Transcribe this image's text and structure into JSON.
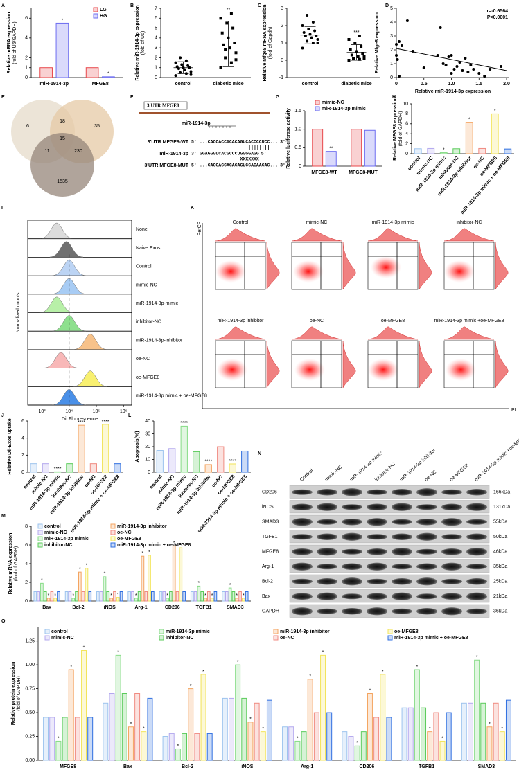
{
  "chart_data": [
    {
      "panel": "A",
      "type": "bar",
      "y_label": "Relative mRNA expression",
      "y_sublabel": "(fold of U6/GAPDH)",
      "categories": [
        "miR-1914-3p",
        "MFGE8"
      ],
      "series": [
        {
          "name": "LG",
          "color": "#e8474b",
          "values": [
            1,
            1
          ]
        },
        {
          "name": "HG",
          "color": "#6c6cf0",
          "values": [
            5.5,
            0.08
          ],
          "significance": [
            "*",
            "*"
          ]
        }
      ],
      "ylim": [
        0,
        7
      ],
      "yticks": [
        0,
        1,
        2,
        4,
        6
      ]
    },
    {
      "panel": "B",
      "type": "dot",
      "y_label": "Relative miR-1914-3p expression",
      "y_sublabel": "(fold of U6)",
      "ylim": [
        0,
        7
      ],
      "yticks": [
        0,
        1,
        2,
        3,
        4,
        5,
        6,
        7
      ],
      "groups": [
        {
          "name": "control",
          "values": [
            0.2,
            0.4,
            0.5,
            0.6,
            0.8,
            0.9,
            1.0,
            1.0,
            1.1,
            1.2,
            1.3,
            1.5,
            1.7,
            2.0,
            0.3
          ],
          "mean": 1.0,
          "sd": 0.6
        },
        {
          "name": "diabetic mice",
          "values": [
            1.0,
            1.5,
            2.0,
            2.5,
            3.0,
            3.3,
            3.5,
            4.0,
            4.5,
            5.0,
            5.5,
            6.0,
            6.5,
            2.8,
            1.8
          ],
          "mean": 3.4,
          "sd": 2.3,
          "significance": "**"
        }
      ]
    },
    {
      "panel": "C",
      "type": "dot",
      "y_label": "Relative Mfge8 mRNA expression",
      "y_sublabel": "(fold of Gapdh)",
      "ylim": [
        -1,
        3
      ],
      "yticks": [
        -1,
        0,
        1,
        2,
        3
      ],
      "groups": [
        {
          "name": "control",
          "values": [
            0.7,
            1.0,
            1.1,
            1.2,
            1.3,
            1.4,
            1.4,
            1.5,
            1.6,
            1.7,
            1.8,
            2.0,
            2.2,
            2.6,
            1.0
          ],
          "mean": 1.45,
          "sd": 0.5
        },
        {
          "name": "diabetic mice",
          "values": [
            0,
            0.05,
            0.1,
            0.1,
            0.2,
            0.3,
            0.4,
            0.5,
            0.6,
            0.8,
            1.0,
            1.2,
            1.4,
            0.1,
            0.2
          ],
          "mean": 0.45,
          "sd": 0.45,
          "significance": "***"
        }
      ]
    },
    {
      "panel": "D",
      "type": "scatter",
      "x_label": "Relative miR-1914-3p expression",
      "y_label": "Relative Mfge8 expression",
      "xlim": [
        0,
        2.05
      ],
      "ylim": [
        0,
        5
      ],
      "xticks": [
        0,
        0.5,
        {
          "value": 1,
          "label": "1.0"
        },
        1.5,
        {
          "value": 2,
          "label": "2.0"
        }
      ],
      "yticks": [
        0,
        1,
        2,
        3,
        4,
        5
      ],
      "x": [
        0,
        0,
        0.02,
        0.05,
        0.05,
        0.1,
        0.2,
        0.3,
        0.5,
        0.75,
        0.8,
        0.9,
        0.95,
        1.0,
        1.05,
        1.1,
        1.15,
        1.2,
        1.3,
        1.35,
        1.4,
        1.5,
        1.6,
        1.7,
        1.9,
        1.0,
        0.85,
        1.25
      ],
      "y": [
        2.4,
        1.6,
        1.3,
        2.6,
        0.1,
        2.3,
        4.1,
        1.9,
        0.7,
        1.6,
        3.6,
        0.9,
        1.5,
        1.6,
        0.6,
        0.8,
        1.1,
        0.5,
        0.4,
        0.9,
        0.6,
        0.3,
        0.1,
        0.6,
        0.8,
        0.3,
        1.0,
        1.4
      ],
      "fit_x": [
        0,
        2
      ],
      "fit_y": [
        2.1,
        0.5
      ],
      "annotations": [
        "r=-0.6564",
        "P<0.0001"
      ]
    },
    {
      "panel": "E",
      "type": "venn",
      "numbers": [
        6,
        18,
        35,
        15,
        11,
        230,
        1535
      ]
    },
    {
      "panel": "F",
      "type": "sequence",
      "gene_label": "3'UTR MFGE8",
      "mirna_label": "miR-1914-3p",
      "rows": [
        {
          "label": "3'UTR MFGE8-WT",
          "start": "5'",
          "seq": "...CACCACCACACAGUC",
          "site": "ACCCCUCC",
          "tail": "...",
          "end": "3'"
        },
        {
          "label": "miR-1914-3p",
          "start": "3'",
          "seq": "GGAGGGUCACGCCCU",
          "site": "GGGGAGG",
          "end": "5'"
        },
        {
          "label": "3'UTR MFGE8-MUT",
          "start": "5'",
          "seq": "...CACCACCACACAGUC",
          "site": "CAGAACAC",
          "tail": "...",
          "end": "3'"
        }
      ],
      "mismatch": "XXXXXXX"
    },
    {
      "panel": "G",
      "type": "bar",
      "y_label": "Relative luciferase activity",
      "categories": [
        "MFGE8-WT",
        "MFGE8-MUT"
      ],
      "series": [
        {
          "name": "mimic-NC",
          "color": "#e8474b",
          "values": [
            1,
            1
          ]
        },
        {
          "name": "miR-1914-3p mimic",
          "color": "#6c6cf0",
          "values": [
            0.4,
            0.97
          ],
          "significance": [
            "**",
            null
          ]
        }
      ],
      "ylim": [
        0,
        1.5
      ],
      "yticks": [
        0,
        0.5,
        {
          "value": 1,
          "label": "1.0"
        },
        1.5
      ]
    },
    {
      "panel": "H",
      "type": "bar",
      "y_label": "Relative MFGE8 expression",
      "y_sublabel": "(fold of GAPDH)",
      "categories": [
        "control",
        "mimic-NC",
        "miR-1914-3p mimic",
        "inhibitor-NC",
        "miR-1914-3p inhibitor",
        "oe-NC",
        "oe-MFGE8",
        "miR-1914-3p mimic + oe-MFGE8"
      ],
      "values": [
        1,
        1.05,
        0.2,
        1,
        6.3,
        1.05,
        8,
        0.95
      ],
      "colors": [
        "#9cc3ee",
        "#b3a8ee",
        "#86dc86",
        "#5acb5a",
        "#f4a460",
        "#f08a80",
        "#f2e45a",
        "#2f6fe0"
      ],
      "significance": [
        null,
        null,
        "*",
        null,
        "*",
        null,
        "*",
        null
      ],
      "ylim": [
        0,
        10
      ],
      "yticks": [
        0,
        2,
        4,
        6,
        8,
        10
      ]
    },
    {
      "panel": "I",
      "type": "histogram_stack",
      "x_label": "Dil Fluorescence",
      "y_label": "Normalized counts",
      "log_x": true,
      "xlim": [
        300,
        2000000
      ],
      "xticks": [
        {
          "value": 1000,
          "label": "10³"
        },
        {
          "value": 10000,
          "label": "10⁴"
        },
        {
          "value": 100000,
          "label": "10⁵"
        },
        {
          "value": 1000000,
          "label": "10⁶"
        }
      ],
      "reference_line": 10000,
      "rows": [
        {
          "label": "None",
          "color": "#dcdcdc",
          "peak": 3500
        },
        {
          "label": "Naive Exos",
          "color": "#707070",
          "peak": 8000
        },
        {
          "label": "Control",
          "color": "#bcd4f4",
          "peak": 10000
        },
        {
          "label": "mimic-NC",
          "color": "#a8ccf4",
          "peak": 10000
        },
        {
          "label": "miR-1914-3p-mimic",
          "color": "#b8f0a8",
          "peak": 3500
        },
        {
          "label": "inhibitor-NC",
          "color": "#8ee08e",
          "peak": 10000
        },
        {
          "label": "miR-1914-3p-inhibitor",
          "color": "#f7c28a",
          "peak": 60000
        },
        {
          "label": "oe-NC",
          "color": "#f8b8b8",
          "peak": 5000
        },
        {
          "label": "oe-MFGE8",
          "color": "#f8f070",
          "peak": 60000
        },
        {
          "label": "miR-1914-3p mimic + oe-MFGE8",
          "color": "#4a90e8",
          "peak": 10000
        }
      ]
    },
    {
      "panel": "K",
      "type": "flow_grid",
      "x_label": "PI",
      "y_label": "PerCP",
      "plots": [
        "Control",
        "mimic-NC",
        "miR-1914-3p mimic",
        "inhibitor-NC",
        "miR-1914-3p inhibitor",
        "oe-NC",
        "oe-MFGE8",
        "miR-1914-3p mimic +oe-MFGE8"
      ]
    },
    {
      "panel": "J",
      "type": "bar",
      "y_label": "Relative Dil-Exos uptake",
      "categories": [
        "control",
        "mimic-NC",
        "miR-1914-3p mimic",
        "inhibitor-NC",
        "miR-1914-3p inhibitor",
        "oe-NC",
        "oe-MFGE8",
        "miR-1914-3p mimic + oe-MFGE8"
      ],
      "values": [
        1,
        1,
        0.05,
        1,
        5.5,
        1,
        5.6,
        1
      ],
      "colors": [
        "#9cc3ee",
        "#b3a8ee",
        "#86dc86",
        "#5acb5a",
        "#f4a460",
        "#f08a80",
        "#f2e45a",
        "#2f6fe0"
      ],
      "significance": [
        null,
        null,
        "****",
        null,
        "****",
        null,
        "****",
        null
      ],
      "ylim": [
        0,
        6
      ],
      "yticks": [
        0,
        2,
        4,
        6
      ]
    },
    {
      "panel": "L",
      "type": "bar",
      "y_label": "Apoptosis(%)",
      "categories": [
        "control",
        "mimic-NC",
        "miR-1914-3p mimic",
        "inhibitor-NC",
        "miR-1914-3p inhibitor",
        "oe-NC",
        "oe-MFGE8",
        "miR-1914-3p mimic + oe-MFGE8"
      ],
      "values": [
        17,
        18.5,
        36,
        16,
        6,
        20,
        6.5,
        16.5
      ],
      "colors": [
        "#9cc3ee",
        "#b3a8ee",
        "#86dc86",
        "#5acb5a",
        "#f4a460",
        "#f08a80",
        "#f2e45a",
        "#2f6fe0"
      ],
      "significance": [
        null,
        null,
        "****",
        null,
        "****",
        null,
        "****",
        null
      ],
      "ylim": [
        0,
        40
      ],
      "yticks": [
        0,
        10,
        20,
        30,
        40
      ]
    },
    {
      "panel": "N",
      "type": "western",
      "lanes": [
        "Control",
        "mimic-NC",
        "miR-1914-3p mimic",
        "inhibitor-NC",
        "miR-1914-3p inhibitor",
        "oe-NC",
        "oe-MFGE8",
        "miR-1914-3p mimic +oe-MFGE8"
      ],
      "proteins": [
        {
          "name": "CD206",
          "size": "166kDa"
        },
        {
          "name": "iNOS",
          "size": "131kDa"
        },
        {
          "name": "SMAD3",
          "size": "55kDa"
        },
        {
          "name": "TGFB1",
          "size": "50kDa"
        },
        {
          "name": "MFGE8",
          "size": "46kDa"
        },
        {
          "name": "Arg-1",
          "size": "35kDa"
        },
        {
          "name": "Bcl-2",
          "size": "25kDa"
        },
        {
          "name": "Bax",
          "size": "21kDa"
        },
        {
          "name": "GAPDH",
          "size": "36kDa"
        }
      ]
    },
    {
      "panel": "M",
      "type": "bar",
      "y_label": "Relative mRNA expression",
      "y_sublabel": "(fold of GAPDH)",
      "categories": [
        "Bax",
        "Bcl-2",
        "iNOS",
        "Arg-1",
        "CD206",
        "TGFB1",
        "SMAD3"
      ],
      "series": [
        {
          "name": "control",
          "color": "#9cc3ee",
          "values": [
            1,
            1,
            1,
            1,
            1,
            1,
            1
          ]
        },
        {
          "name": "mimic-NC",
          "color": "#b3a8ee",
          "values": [
            1,
            1,
            1,
            1,
            1,
            1,
            1
          ]
        },
        {
          "name": "miR-1914-3p mimic",
          "color": "#86dc86",
          "values": [
            1.9,
            0.3,
            2.6,
            0.3,
            0.3,
            1.6,
            1.4
          ],
          "significance": [
            "*",
            "*",
            "*",
            "*",
            "*",
            "*",
            "*"
          ]
        },
        {
          "name": "inhibitor-NC",
          "color": "#5acb5a",
          "values": [
            1,
            1,
            1,
            1,
            1,
            1,
            1
          ]
        },
        {
          "name": "miR-1914-3p inhibitor",
          "color": "#f4a460",
          "values": [
            0.3,
            3.1,
            0.3,
            4.8,
            5.9,
            0.3,
            0.3
          ],
          "significance": [
            "*",
            "*",
            "*",
            "*",
            "*",
            "*",
            "*"
          ]
        },
        {
          "name": "oe-NC",
          "color": "#f08a80",
          "values": [
            1,
            1,
            1,
            1,
            1,
            1,
            1
          ]
        },
        {
          "name": "oe-MFGE8",
          "color": "#f2e45a",
          "values": [
            0.3,
            3.5,
            0.4,
            4.9,
            5.7,
            0.3,
            0.3
          ],
          "significance": [
            "*",
            "*",
            "*",
            "*",
            "*",
            "*",
            "*"
          ]
        },
        {
          "name": "miR-1914-3p mimic + oe-MFGE8",
          "color": "#2f6fe0",
          "values": [
            1,
            1,
            1,
            1,
            1,
            1,
            1
          ]
        }
      ],
      "ylim": [
        0,
        8
      ],
      "yticks": [
        0,
        2,
        4,
        6,
        8
      ]
    },
    {
      "panel": "O",
      "type": "bar",
      "y_label": "Relative protein expression",
      "y_sublabel": "(fold of GAPDH)",
      "categories": [
        "MFGE8",
        "Bax",
        "Bcl-2",
        "iNOS",
        "Arg-1",
        "CD206",
        "TGFB1",
        "SMAD3"
      ],
      "series": [
        {
          "name": "control",
          "color": "#9cc3ee",
          "values": [
            0.45,
            0.6,
            0.25,
            0.65,
            0.35,
            0.3,
            0.55,
            0.6
          ]
        },
        {
          "name": "mimic-NC",
          "color": "#b3a8ee",
          "values": [
            0.45,
            0.7,
            0.28,
            0.65,
            0.35,
            0.25,
            0.55,
            0.6
          ]
        },
        {
          "name": "miR-1914-3p mimic",
          "color": "#86dc86",
          "values": [
            0.2,
            1.1,
            0.12,
            1.0,
            0.2,
            0.15,
            0.95,
            1.05
          ],
          "significance": [
            "*",
            "*",
            "*",
            "*",
            "*",
            "*",
            "*",
            "*"
          ]
        },
        {
          "name": "inhibitor-NC",
          "color": "#5acb5a",
          "values": [
            0.45,
            0.7,
            0.28,
            0.65,
            0.3,
            0.3,
            0.55,
            0.6
          ]
        },
        {
          "name": "miR-1914-3p inhibitor",
          "color": "#f4a460",
          "values": [
            0.95,
            0.35,
            0.75,
            0.4,
            0.85,
            0.7,
            0.3,
            0.35
          ],
          "significance": [
            "*",
            "*",
            "*",
            "*",
            "*",
            "*",
            "*",
            "*"
          ]
        },
        {
          "name": "oe-NC",
          "color": "#f08a80",
          "values": [
            0.45,
            0.7,
            0.28,
            0.6,
            0.5,
            0.45,
            0.5,
            0.6
          ]
        },
        {
          "name": "oe-MFGE8",
          "color": "#f2e45a",
          "values": [
            1.15,
            0.3,
            0.9,
            0.3,
            1.1,
            0.9,
            0.2,
            0.3
          ],
          "significance": [
            "*",
            "*",
            "*",
            "*",
            "*",
            "*",
            "*",
            "*"
          ]
        },
        {
          "name": "miR-1914-3p mimic + oe-MFGE8",
          "color": "#2f6fe0",
          "values": [
            0.45,
            0.65,
            0.28,
            0.63,
            0.5,
            0.45,
            0.5,
            0.63
          ]
        }
      ],
      "ylim": [
        0,
        1.4
      ],
      "yticks": [
        {
          "value": 0,
          "label": "0.00"
        },
        {
          "value": 0.25,
          "label": "0.25"
        },
        {
          "value": 0.5,
          "label": "0.50"
        },
        {
          "value": 0.75,
          "label": "0.75"
        },
        {
          "value": 1,
          "label": "1.00"
        },
        {
          "value": 1.25,
          "label": "1.25"
        }
      ]
    }
  ]
}
